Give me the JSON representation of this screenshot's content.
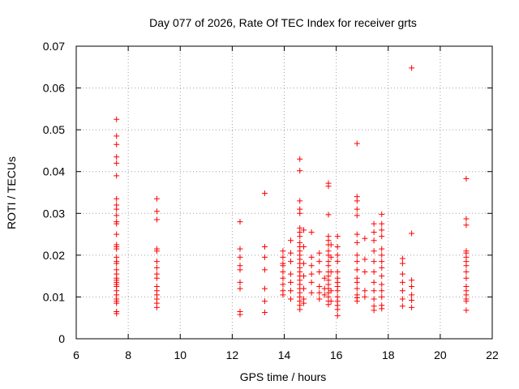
{
  "chart_data": {
    "type": "scatter",
    "title": "Day 077 of 2026, Rate Of TEC Index for receiver grts",
    "xlabel": "GPS time / hours",
    "ylabel": "ROTI / TECUs",
    "xlim": [
      6,
      22
    ],
    "ylim": [
      0,
      0.07
    ],
    "xticks": [
      6,
      8,
      10,
      12,
      14,
      16,
      18,
      20,
      22
    ],
    "yticks": [
      0,
      0.01,
      0.02,
      0.03,
      0.04,
      0.05,
      0.06,
      0.07
    ],
    "xtick_labels": [
      "6",
      "8",
      "10",
      "12",
      "14",
      "16",
      "18",
      "20",
      "22"
    ],
    "ytick_labels": [
      "0",
      "0.01",
      "0.02",
      "0.03",
      "0.04",
      "0.05",
      "0.06",
      "0.07"
    ],
    "grid": true,
    "marker": "+",
    "color": "#ff0000",
    "series": [
      {
        "name": "ROTI",
        "points": [
          [
            7.55,
            0.0525
          ],
          [
            7.55,
            0.0485
          ],
          [
            7.55,
            0.0465
          ],
          [
            7.55,
            0.0435
          ],
          [
            7.55,
            0.042
          ],
          [
            7.55,
            0.039
          ],
          [
            7.55,
            0.0335
          ],
          [
            7.55,
            0.032
          ],
          [
            7.55,
            0.031
          ],
          [
            7.55,
            0.0295
          ],
          [
            7.55,
            0.028
          ],
          [
            7.55,
            0.0275
          ],
          [
            7.55,
            0.025
          ],
          [
            7.55,
            0.0225
          ],
          [
            7.55,
            0.022
          ],
          [
            7.55,
            0.0215
          ],
          [
            7.55,
            0.0195
          ],
          [
            7.55,
            0.0185
          ],
          [
            7.55,
            0.018
          ],
          [
            7.55,
            0.0165
          ],
          [
            7.55,
            0.0155
          ],
          [
            7.55,
            0.0145
          ],
          [
            7.55,
            0.014
          ],
          [
            7.55,
            0.0135
          ],
          [
            7.55,
            0.013
          ],
          [
            7.55,
            0.0125
          ],
          [
            7.55,
            0.0115
          ],
          [
            7.55,
            0.0105
          ],
          [
            7.55,
            0.0095
          ],
          [
            7.55,
            0.009
          ],
          [
            7.55,
            0.0085
          ],
          [
            7.55,
            0.0065
          ],
          [
            7.55,
            0.006
          ],
          [
            9.1,
            0.0335
          ],
          [
            9.1,
            0.0305
          ],
          [
            9.1,
            0.0285
          ],
          [
            9.1,
            0.0215
          ],
          [
            9.1,
            0.021
          ],
          [
            9.1,
            0.0185
          ],
          [
            9.1,
            0.017
          ],
          [
            9.1,
            0.0155
          ],
          [
            9.1,
            0.0145
          ],
          [
            9.1,
            0.0125
          ],
          [
            9.1,
            0.0115
          ],
          [
            9.1,
            0.0105
          ],
          [
            9.1,
            0.0095
          ],
          [
            9.1,
            0.0085
          ],
          [
            9.1,
            0.0075
          ],
          [
            12.3,
            0.028
          ],
          [
            12.3,
            0.0215
          ],
          [
            12.3,
            0.0195
          ],
          [
            12.3,
            0.0175
          ],
          [
            12.3,
            0.0165
          ],
          [
            12.3,
            0.0135
          ],
          [
            12.3,
            0.012
          ],
          [
            12.3,
            0.0065
          ],
          [
            12.3,
            0.0058
          ],
          [
            13.25,
            0.0348
          ],
          [
            13.25,
            0.022
          ],
          [
            13.25,
            0.0195
          ],
          [
            13.25,
            0.0165
          ],
          [
            13.25,
            0.012
          ],
          [
            13.25,
            0.009
          ],
          [
            13.25,
            0.0063
          ],
          [
            13.95,
            0.021
          ],
          [
            13.95,
            0.0195
          ],
          [
            13.95,
            0.018
          ],
          [
            13.95,
            0.0175
          ],
          [
            13.95,
            0.016
          ],
          [
            13.95,
            0.0145
          ],
          [
            13.95,
            0.013
          ],
          [
            13.95,
            0.0115
          ],
          [
            13.95,
            0.0105
          ],
          [
            14.25,
            0.0235
          ],
          [
            14.25,
            0.0205
          ],
          [
            14.25,
            0.0185
          ],
          [
            14.25,
            0.0155
          ],
          [
            14.25,
            0.0135
          ],
          [
            14.25,
            0.0115
          ],
          [
            14.25,
            0.0095
          ],
          [
            14.6,
            0.043
          ],
          [
            14.6,
            0.0402
          ],
          [
            14.6,
            0.033
          ],
          [
            14.6,
            0.031
          ],
          [
            14.6,
            0.03
          ],
          [
            14.6,
            0.0265
          ],
          [
            14.6,
            0.0255
          ],
          [
            14.6,
            0.0245
          ],
          [
            14.6,
            0.023
          ],
          [
            14.6,
            0.022
          ],
          [
            14.6,
            0.021
          ],
          [
            14.6,
            0.02
          ],
          [
            14.6,
            0.019
          ],
          [
            14.6,
            0.018
          ],
          [
            14.6,
            0.017
          ],
          [
            14.6,
            0.016
          ],
          [
            14.6,
            0.015
          ],
          [
            14.6,
            0.014
          ],
          [
            14.6,
            0.013
          ],
          [
            14.6,
            0.012
          ],
          [
            14.6,
            0.011
          ],
          [
            14.6,
            0.01
          ],
          [
            14.6,
            0.009
          ],
          [
            14.6,
            0.008
          ],
          [
            14.6,
            0.007
          ],
          [
            14.75,
            0.026
          ],
          [
            14.75,
            0.022
          ],
          [
            14.75,
            0.018
          ],
          [
            14.75,
            0.015
          ],
          [
            14.75,
            0.012
          ],
          [
            14.75,
            0.0095
          ],
          [
            14.75,
            0.0085
          ],
          [
            15.05,
            0.0255
          ],
          [
            15.05,
            0.0195
          ],
          [
            15.05,
            0.0175
          ],
          [
            15.05,
            0.0155
          ],
          [
            15.05,
            0.0135
          ],
          [
            15.05,
            0.011
          ],
          [
            15.35,
            0.0205
          ],
          [
            15.35,
            0.0185
          ],
          [
            15.35,
            0.016
          ],
          [
            15.35,
            0.0125
          ],
          [
            15.35,
            0.011
          ],
          [
            15.35,
            0.0095
          ],
          [
            15.55,
            0.0145
          ],
          [
            15.55,
            0.012
          ],
          [
            15.55,
            0.0105
          ],
          [
            15.7,
            0.0372
          ],
          [
            15.7,
            0.0365
          ],
          [
            15.7,
            0.0297
          ],
          [
            15.7,
            0.0245
          ],
          [
            15.7,
            0.0235
          ],
          [
            15.7,
            0.0225
          ],
          [
            15.7,
            0.021
          ],
          [
            15.7,
            0.02
          ],
          [
            15.7,
            0.0185
          ],
          [
            15.7,
            0.0175
          ],
          [
            15.7,
            0.016
          ],
          [
            15.7,
            0.015
          ],
          [
            15.7,
            0.014
          ],
          [
            15.7,
            0.013
          ],
          [
            15.7,
            0.012
          ],
          [
            15.7,
            0.011
          ],
          [
            15.7,
            0.01
          ],
          [
            15.7,
            0.009
          ],
          [
            15.7,
            0.0082
          ],
          [
            15.8,
            0.0225
          ],
          [
            15.8,
            0.0195
          ],
          [
            15.8,
            0.016
          ],
          [
            15.8,
            0.0115
          ],
          [
            15.8,
            0.009
          ],
          [
            16.05,
            0.0245
          ],
          [
            16.05,
            0.022
          ],
          [
            16.05,
            0.02
          ],
          [
            16.05,
            0.0185
          ],
          [
            16.05,
            0.016
          ],
          [
            16.05,
            0.0145
          ],
          [
            16.05,
            0.0135
          ],
          [
            16.05,
            0.0125
          ],
          [
            16.05,
            0.0115
          ],
          [
            16.05,
            0.01
          ],
          [
            16.05,
            0.009
          ],
          [
            16.05,
            0.008
          ],
          [
            16.05,
            0.007
          ],
          [
            16.05,
            0.0055
          ],
          [
            16.8,
            0.0467
          ],
          [
            16.8,
            0.034
          ],
          [
            16.8,
            0.033
          ],
          [
            16.8,
            0.031
          ],
          [
            16.8,
            0.0295
          ],
          [
            16.8,
            0.025
          ],
          [
            16.8,
            0.023
          ],
          [
            16.8,
            0.02
          ],
          [
            16.8,
            0.0185
          ],
          [
            16.8,
            0.0165
          ],
          [
            16.8,
            0.0145
          ],
          [
            16.8,
            0.0135
          ],
          [
            16.8,
            0.012
          ],
          [
            16.8,
            0.0105
          ],
          [
            16.8,
            0.0098
          ],
          [
            16.8,
            0.009
          ],
          [
            17.1,
            0.024
          ],
          [
            17.1,
            0.019
          ],
          [
            17.1,
            0.016
          ],
          [
            17.1,
            0.0115
          ],
          [
            17.1,
            0.01
          ],
          [
            17.45,
            0.0275
          ],
          [
            17.45,
            0.0255
          ],
          [
            17.45,
            0.0235
          ],
          [
            17.45,
            0.021
          ],
          [
            17.45,
            0.0185
          ],
          [
            17.45,
            0.016
          ],
          [
            17.45,
            0.0135
          ],
          [
            17.45,
            0.0115
          ],
          [
            17.45,
            0.0095
          ],
          [
            17.45,
            0.0078
          ],
          [
            17.45,
            0.0068
          ],
          [
            17.75,
            0.0298
          ],
          [
            17.75,
            0.0275
          ],
          [
            17.75,
            0.026
          ],
          [
            17.75,
            0.0245
          ],
          [
            17.75,
            0.0215
          ],
          [
            17.75,
            0.02
          ],
          [
            17.75,
            0.0185
          ],
          [
            17.75,
            0.017
          ],
          [
            17.75,
            0.015
          ],
          [
            17.75,
            0.013
          ],
          [
            17.75,
            0.0115
          ],
          [
            17.75,
            0.01
          ],
          [
            17.75,
            0.008
          ],
          [
            17.75,
            0.0072
          ],
          [
            18.55,
            0.0192
          ],
          [
            18.55,
            0.018
          ],
          [
            18.55,
            0.0155
          ],
          [
            18.55,
            0.0135
          ],
          [
            18.55,
            0.0115
          ],
          [
            18.55,
            0.0095
          ],
          [
            18.55,
            0.0078
          ],
          [
            18.9,
            0.0648
          ],
          [
            18.9,
            0.0252
          ],
          [
            18.9,
            0.014
          ],
          [
            18.9,
            0.0125
          ],
          [
            18.9,
            0.0105
          ],
          [
            18.9,
            0.0092
          ],
          [
            18.9,
            0.0075
          ],
          [
            21.0,
            0.0383
          ],
          [
            21.0,
            0.0287
          ],
          [
            21.0,
            0.0272
          ],
          [
            21.0,
            0.021
          ],
          [
            21.0,
            0.0205
          ],
          [
            21.0,
            0.0195
          ],
          [
            21.0,
            0.0185
          ],
          [
            21.0,
            0.0175
          ],
          [
            21.0,
            0.016
          ],
          [
            21.0,
            0.0145
          ],
          [
            21.0,
            0.0125
          ],
          [
            21.0,
            0.0115
          ],
          [
            21.0,
            0.0105
          ],
          [
            21.0,
            0.0095
          ],
          [
            21.0,
            0.009
          ],
          [
            21.0,
            0.0068
          ]
        ]
      }
    ]
  }
}
